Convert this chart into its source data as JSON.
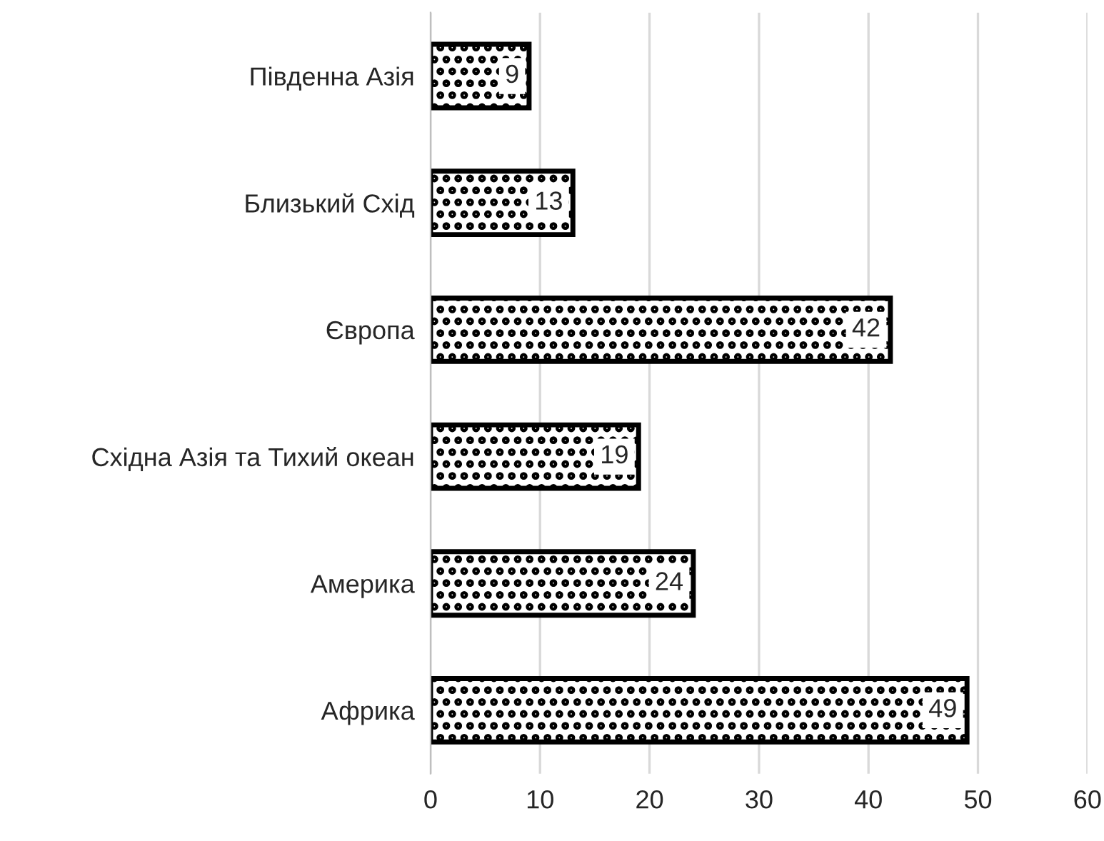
{
  "chart_data": {
    "type": "bar",
    "orientation": "horizontal",
    "categories": [
      "Південна Азія",
      "Близький Схід",
      "Європа",
      "Східна Азія та Тихий океан",
      "Америка",
      "Африка"
    ],
    "values": [
      9,
      13,
      42,
      19,
      24,
      49
    ],
    "color": "#000000",
    "xlim": [
      0,
      60
    ],
    "xticks": [
      0,
      10,
      20,
      30,
      40,
      50,
      60
    ],
    "grid": "x",
    "data_labels": true,
    "legend": false
  }
}
